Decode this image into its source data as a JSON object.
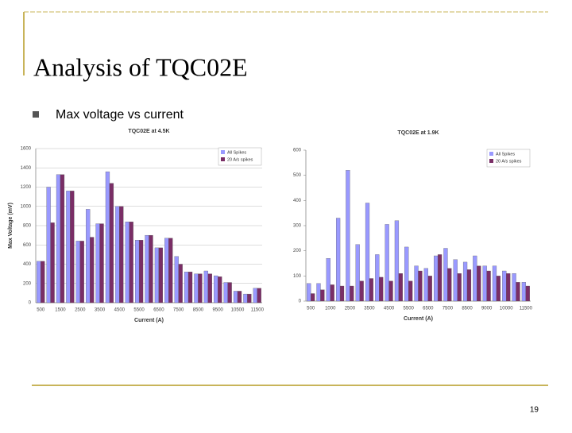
{
  "title": "Analysis of TQC02E",
  "bullet": "Max voltage vs current",
  "page_number": "19",
  "chart_data": [
    {
      "type": "bar",
      "title": "TQC02E at 4.5K",
      "x_label": "Current (A)",
      "y_label": "Max Voltage (mV)",
      "categories": [
        "500",
        null,
        "1500",
        null,
        "2500",
        null,
        "3500",
        null,
        "4500",
        null,
        "5500",
        null,
        "6500",
        null,
        "7500",
        null,
        "8500",
        null,
        "9500",
        null,
        "10500",
        null,
        "11500"
      ],
      "series": [
        {
          "name": "All Spikes",
          "color": "#9999ff",
          "values": [
            430,
            1200,
            1330,
            1160,
            640,
            970,
            820,
            1360,
            1000,
            840,
            650,
            700,
            570,
            670,
            480,
            320,
            300,
            330,
            280,
            210,
            120,
            90,
            150
          ]
        },
        {
          "name": "20 A/s spikes",
          "color": "#7a2e66",
          "values": [
            430,
            830,
            1330,
            1160,
            640,
            680,
            820,
            1240,
            1000,
            840,
            650,
            700,
            570,
            670,
            400,
            320,
            300,
            300,
            270,
            210,
            120,
            90,
            150
          ]
        }
      ],
      "ylim": [
        0,
        1600
      ],
      "yticks": [
        0,
        200,
        400,
        600,
        800,
        1000,
        1200,
        1400,
        1600
      ],
      "grid": true,
      "legend": "top-right"
    },
    {
      "type": "bar",
      "title": "TQC02E at 1.9K",
      "x_label": "Current (A)",
      "categories": [
        "500",
        null,
        "1000",
        null,
        "2500",
        null,
        "3500",
        null,
        "4500",
        null,
        "5500",
        null,
        "6500",
        null,
        "7500",
        null,
        "8500",
        null,
        "9000",
        null,
        "10000",
        null,
        "11500"
      ],
      "series": [
        {
          "name": "All Spikes",
          "color": "#9999ff",
          "values": [
            70,
            70,
            170,
            330,
            520,
            225,
            390,
            185,
            305,
            320,
            215,
            140,
            130,
            180,
            210,
            165,
            155,
            180,
            140,
            140,
            120,
            110,
            75
          ]
        },
        {
          "name": "20 A/s spikes",
          "color": "#7a2e66",
          "values": [
            30,
            45,
            65,
            60,
            60,
            80,
            90,
            95,
            80,
            110,
            80,
            120,
            100,
            185,
            130,
            110,
            125,
            140,
            120,
            100,
            110,
            75,
            60
          ]
        }
      ],
      "ylim": [
        0,
        600
      ],
      "yticks": [
        0,
        100,
        200,
        300,
        400,
        500,
        600
      ],
      "grid": false,
      "legend": "top-right"
    }
  ]
}
